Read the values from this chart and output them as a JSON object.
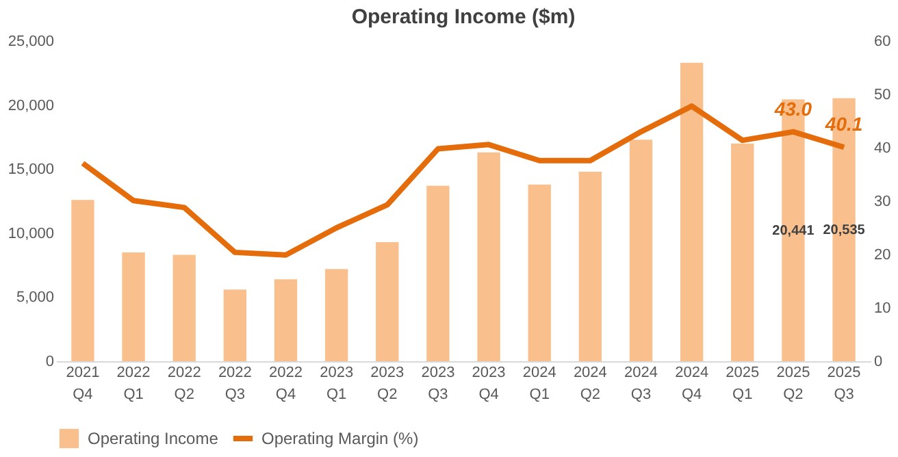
{
  "chart_data": {
    "type": "bar",
    "title": "Operating Income ($m)",
    "categories": [
      "2021 Q4",
      "2022 Q1",
      "2022 Q2",
      "2022 Q3",
      "2022 Q4",
      "2023 Q1",
      "2023 Q2",
      "2023 Q3",
      "2023 Q4",
      "2024 Q1",
      "2024 Q2",
      "2024 Q3",
      "2024 Q4",
      "2025 Q1",
      "2025 Q2",
      "2025 Q3"
    ],
    "series": [
      {
        "name": "Operating Income",
        "color": "#f9c08e",
        "values": [
          12600,
          8500,
          8300,
          5600,
          6400,
          7200,
          9300,
          13700,
          16300,
          13800,
          14800,
          17300,
          23300,
          17000,
          20441,
          20535
        ],
        "value_labels": [
          null,
          null,
          null,
          null,
          null,
          null,
          null,
          null,
          null,
          null,
          null,
          null,
          null,
          null,
          "20,441",
          "20,535"
        ]
      },
      {
        "name": "Operating Margin (%)",
        "type": "line",
        "axis": "y2",
        "color": "#e46c0a",
        "values": [
          37.1,
          30.1,
          28.8,
          20.4,
          19.9,
          25.0,
          29.3,
          39.8,
          40.6,
          37.6,
          37.6,
          43.0,
          47.8,
          41.4,
          43.0,
          40.1
        ],
        "value_labels": [
          null,
          null,
          null,
          null,
          null,
          null,
          null,
          null,
          null,
          null,
          null,
          null,
          null,
          null,
          "43.0",
          "40.1"
        ]
      }
    ],
    "ylim": [
      0,
      25000
    ],
    "yticks": [
      {
        "value": 0,
        "label": "0"
      },
      {
        "value": 5000,
        "label": "5,000"
      },
      {
        "value": 10000,
        "label": "10,000"
      },
      {
        "value": 15000,
        "label": "15,000"
      },
      {
        "value": 20000,
        "label": "20,000"
      },
      {
        "value": 25000,
        "label": "25,000"
      }
    ],
    "y2lim": [
      0,
      60
    ],
    "y2ticks": [
      0,
      10,
      20,
      30,
      40,
      50,
      60
    ],
    "grid": false,
    "legend": "bottom"
  }
}
